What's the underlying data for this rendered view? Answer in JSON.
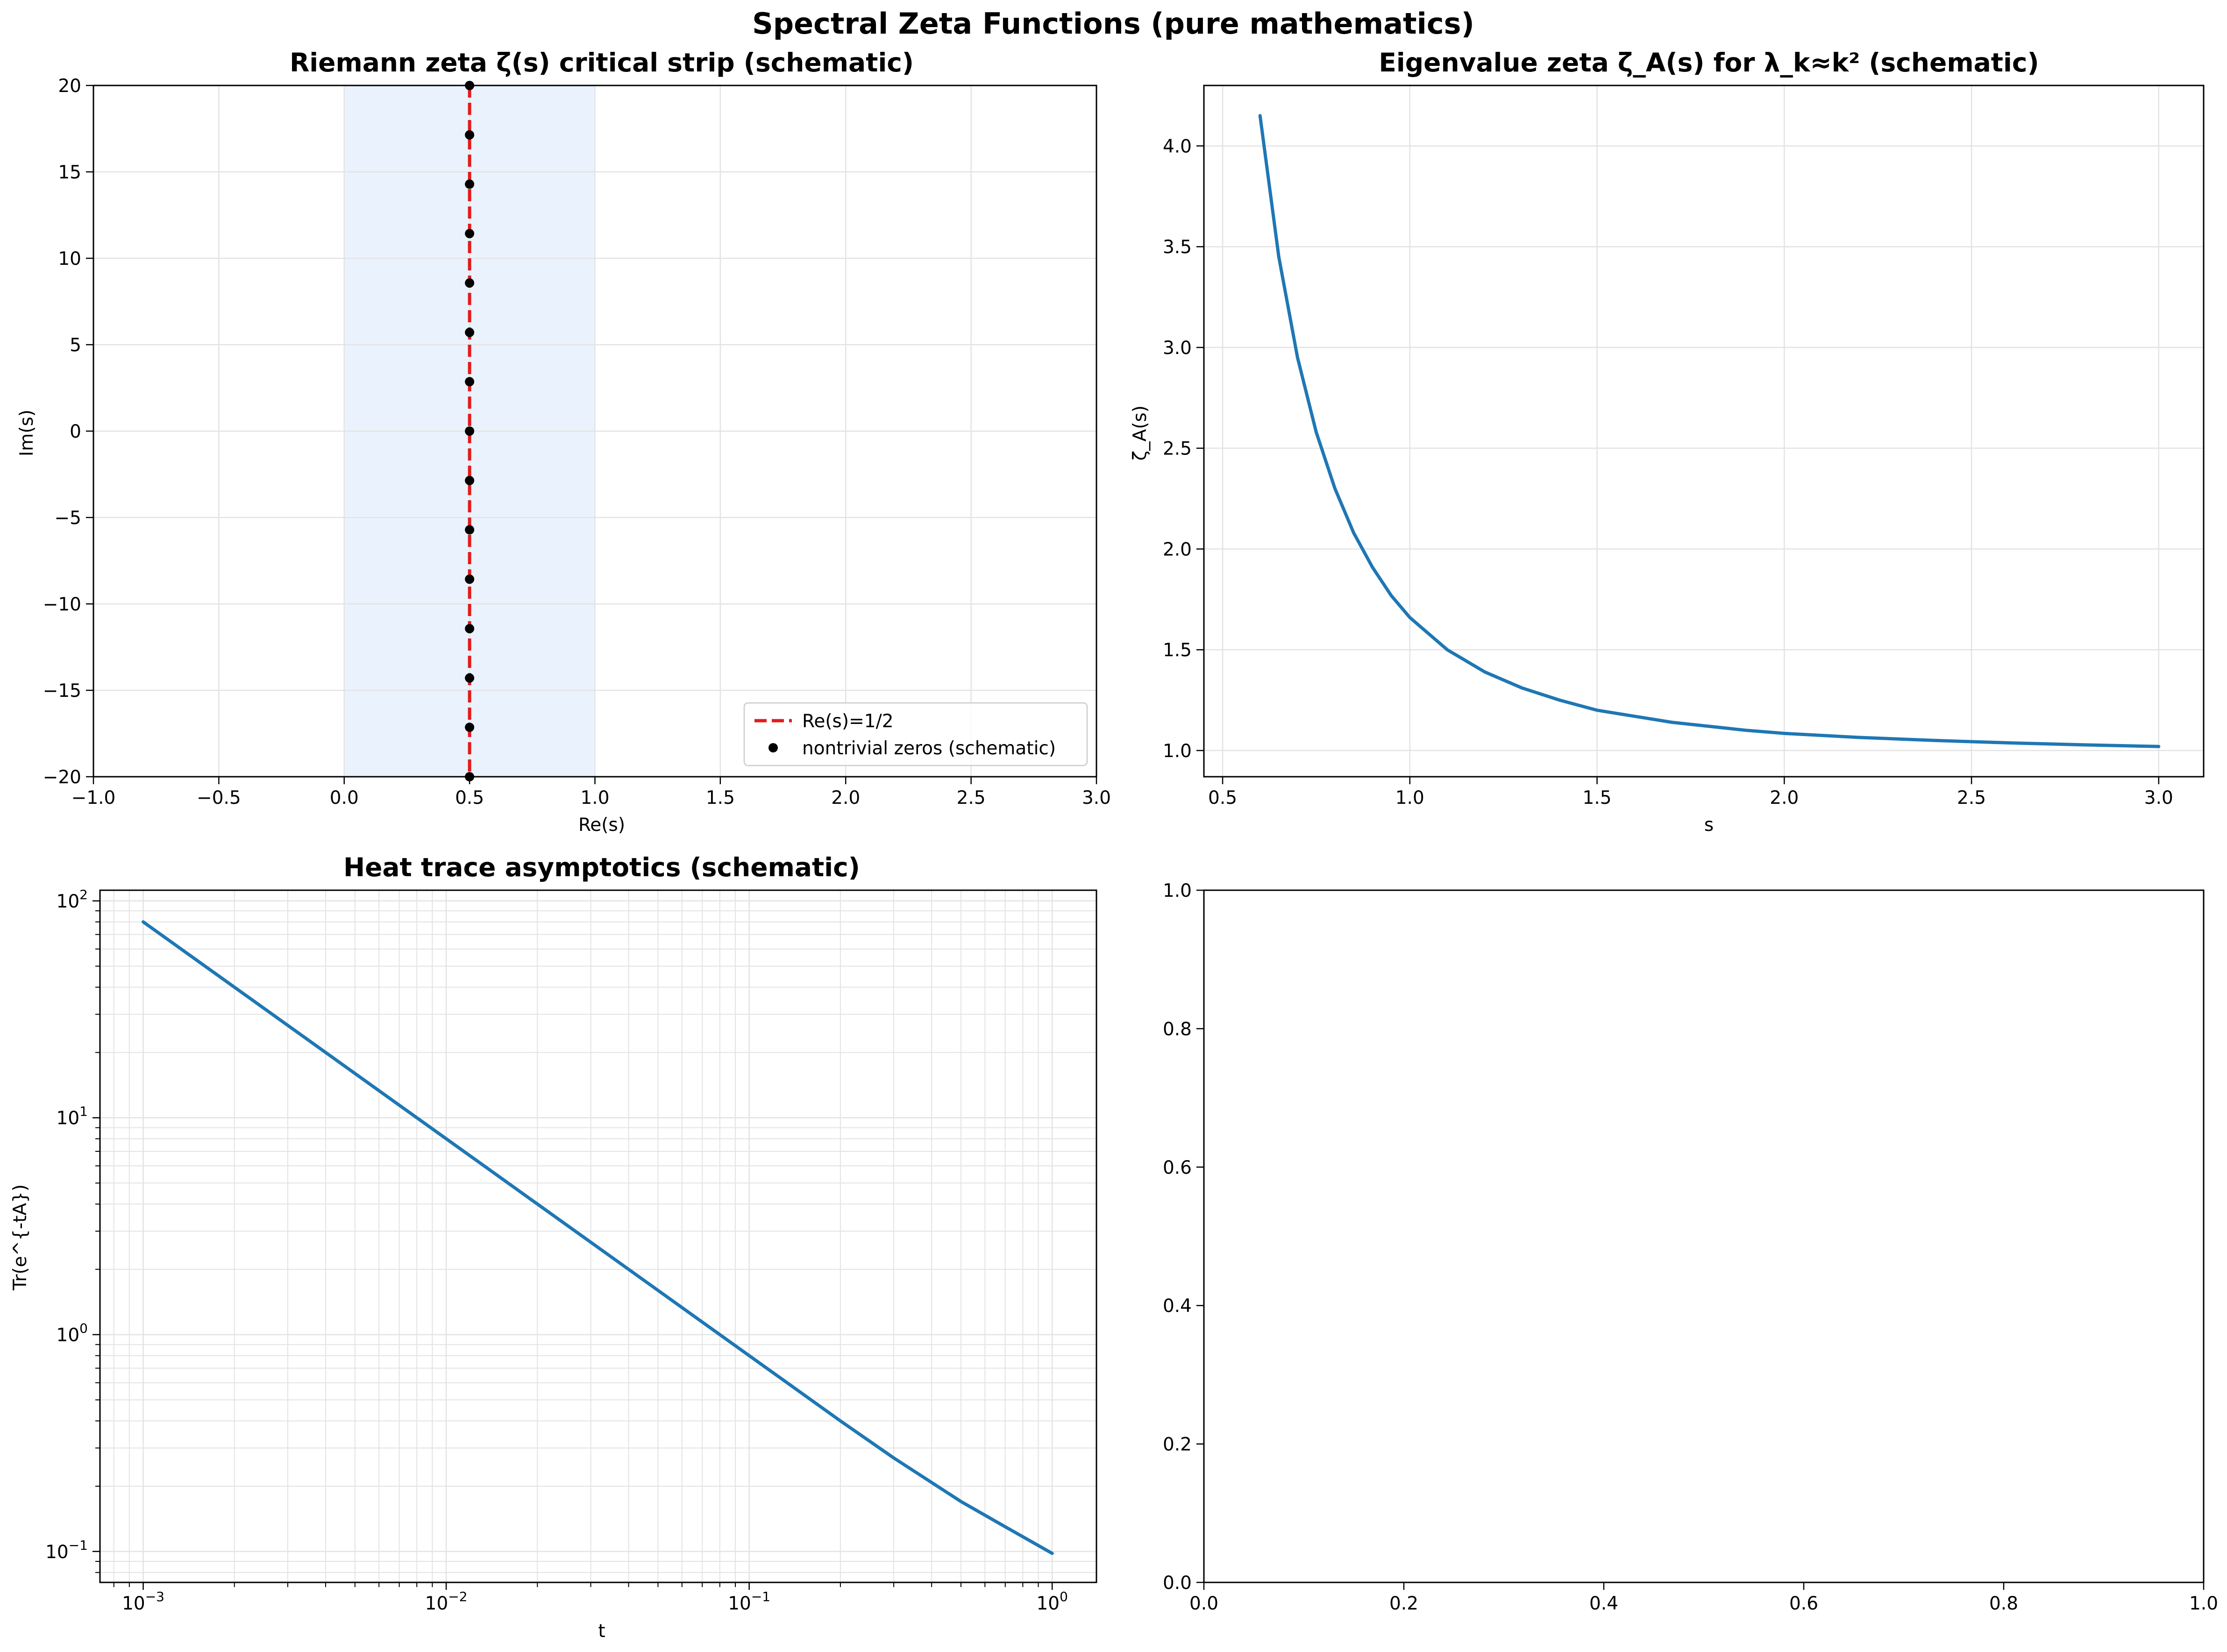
{
  "figure": {
    "suptitle": "Spectral Zeta Functions (pure mathematics)"
  },
  "colors": {
    "line": "#1f77b4",
    "red": "#e41a1c",
    "strip": "#eaf3fd",
    "grid": "#e3e3e3",
    "zero": "#000000"
  },
  "chart_data": [
    {
      "type": "scatter",
      "title": "Riemann zeta ζ(s) critical strip (schematic)",
      "xlabel": "Re(s)",
      "ylabel": "Im(s)",
      "xlim": [
        -1.0,
        3.0
      ],
      "ylim": [
        -20,
        20
      ],
      "xticks": [
        -1.0,
        -0.5,
        0.0,
        0.5,
        1.0,
        1.5,
        2.0,
        2.5,
        3.0
      ],
      "xtick_labels": [
        "−1.0",
        "−0.5",
        "0.0",
        "0.5",
        "1.0",
        "1.5",
        "2.0",
        "2.5",
        "3.0"
      ],
      "yticks": [
        -20,
        -15,
        -10,
        -5,
        0,
        5,
        10,
        15,
        20
      ],
      "ytick_labels": [
        "−20",
        "−15",
        "−10",
        "−5",
        "0",
        "5",
        "10",
        "15",
        "20"
      ],
      "grid": true,
      "shaded_region": {
        "x": [
          0,
          1
        ]
      },
      "vline": {
        "x": 0.5,
        "name": "Re(s)=1/2",
        "style": "dashed"
      },
      "zeros": {
        "name": "nontrivial zeros (schematic)",
        "x": 0.5,
        "y": [
          -20,
          -17.14,
          -14.29,
          -11.43,
          -8.57,
          -5.71,
          -2.86,
          0,
          2.86,
          5.71,
          8.57,
          11.43,
          14.29,
          17.14,
          20
        ]
      },
      "legend": "lower-right"
    },
    {
      "type": "line",
      "title": "Eigenvalue zeta ζ_A(s) for λ_k≈k² (schematic)",
      "xlabel": "s",
      "ylabel": "ζ_A(s)",
      "xlim": [
        0.45,
        3.12
      ],
      "ylim": [
        0.87,
        4.3
      ],
      "xticks": [
        0.5,
        1.0,
        1.5,
        2.0,
        2.5,
        3.0
      ],
      "xtick_labels": [
        "0.5",
        "1.0",
        "1.5",
        "2.0",
        "2.5",
        "3.0"
      ],
      "yticks": [
        1.0,
        1.5,
        2.0,
        2.5,
        3.0,
        3.5,
        4.0
      ],
      "ytick_labels": [
        "1.0",
        "1.5",
        "2.0",
        "2.5",
        "3.0",
        "3.5",
        "4.0"
      ],
      "grid": true,
      "x": [
        0.6,
        0.65,
        0.7,
        0.75,
        0.8,
        0.85,
        0.9,
        0.95,
        1.0,
        1.1,
        1.2,
        1.3,
        1.4,
        1.5,
        1.6,
        1.7,
        1.8,
        1.9,
        2.0,
        2.2,
        2.4,
        2.6,
        2.8,
        3.0
      ],
      "y": [
        4.15,
        3.45,
        2.95,
        2.58,
        2.3,
        2.08,
        1.91,
        1.77,
        1.66,
        1.5,
        1.39,
        1.31,
        1.25,
        1.2,
        1.17,
        1.14,
        1.12,
        1.1,
        1.085,
        1.065,
        1.05,
        1.038,
        1.028,
        1.02
      ]
    },
    {
      "type": "line",
      "title": "Heat trace asymptotics (schematic)",
      "xlabel": "t",
      "ylabel": "Tr(e^{-tA})",
      "xscale": "log",
      "yscale": "log",
      "xlim": [
        0.00072,
        1.4
      ],
      "ylim": [
        0.072,
        112
      ],
      "xticks": [
        0.001,
        0.01,
        0.1,
        1
      ],
      "xtick_labels": [
        [
          "10",
          "−3"
        ],
        [
          "10",
          "−2"
        ],
        [
          "10",
          "−1"
        ],
        [
          "10",
          "0"
        ]
      ],
      "yticks": [
        0.1,
        1,
        10,
        100
      ],
      "ytick_labels": [
        [
          "10",
          "−1"
        ],
        [
          "10",
          "0"
        ],
        [
          "10",
          "1"
        ],
        [
          "10",
          "2"
        ]
      ],
      "grid": true,
      "x": [
        0.001,
        0.002,
        0.005,
        0.01,
        0.02,
        0.05,
        0.1,
        0.2,
        0.3,
        0.5,
        0.7,
        1.0
      ],
      "y": [
        80,
        40,
        16,
        8,
        4,
        1.6,
        0.8,
        0.4,
        0.27,
        0.17,
        0.13,
        0.098
      ]
    },
    {
      "type": "line",
      "title": "",
      "xlabel": "",
      "ylabel": "",
      "xlim": [
        0,
        1
      ],
      "ylim": [
        0,
        1
      ],
      "xticks": [
        0.0,
        0.2,
        0.4,
        0.6,
        0.8,
        1.0
      ],
      "xtick_labels": [
        "0.0",
        "0.2",
        "0.4",
        "0.6",
        "0.8",
        "1.0"
      ],
      "yticks": [
        0.0,
        0.2,
        0.4,
        0.6,
        0.8,
        1.0
      ],
      "ytick_labels": [
        "0.0",
        "0.2",
        "0.4",
        "0.6",
        "0.8",
        "1.0"
      ],
      "grid": false
    }
  ]
}
